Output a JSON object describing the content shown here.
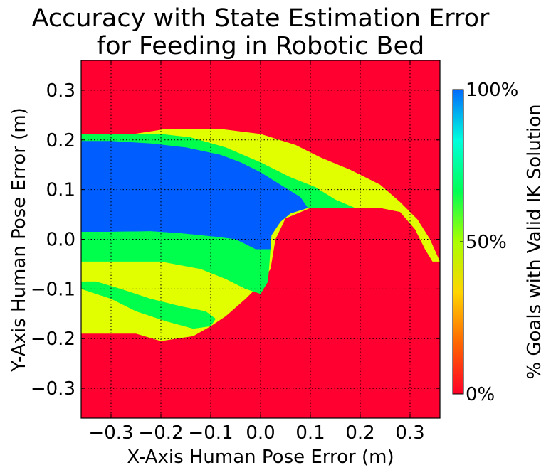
{
  "chart_data": {
    "type": "heatmap",
    "title_lines": [
      "Accuracy with State Estimation Error",
      "for Feeding in Robotic Bed"
    ],
    "xlabel": "X-Axis Human Pose Error (m)",
    "ylabel": "Y-Axis Human Pose Error (m)",
    "xlim": [
      -0.36,
      0.36
    ],
    "ylim": [
      -0.36,
      0.36
    ],
    "xticks": [
      -0.3,
      -0.2,
      -0.1,
      0.0,
      0.1,
      0.2,
      0.3
    ],
    "yticks": [
      -0.3,
      -0.2,
      -0.1,
      0.0,
      0.1,
      0.2,
      0.3
    ],
    "xtick_labels": [
      "−0.3",
      "−0.2",
      "−0.1",
      "0.0",
      "0.1",
      "0.2",
      "0.3"
    ],
    "ytick_labels": [
      "−0.3",
      "−0.2",
      "−0.1",
      "0.0",
      "0.1",
      "0.2",
      "0.3"
    ],
    "grid": true,
    "grid_style": "dotted",
    "colorbar": {
      "label": "% Goals with Valid IK Solution",
      "ticks": [
        0,
        50,
        100
      ],
      "tick_labels": [
        "0%",
        "50%",
        "100%"
      ],
      "colormap": "hsv",
      "stops": [
        "#ff0028",
        "#ff6600",
        "#ffd400",
        "#aaff00",
        "#00ff55",
        "#00ffdd",
        "#006aff"
      ]
    },
    "category_colors": {
      "0": "#ff0030",
      "33": "#e2ff00",
      "67": "#00ff4d",
      "100": "#005dff"
    },
    "regions": [
      {
        "value": 33,
        "description": "outer arc band and lower-left lobe",
        "polygon": [
          [
            -0.36,
            0.212
          ],
          [
            -0.33,
            0.212
          ],
          [
            -0.28,
            0.208
          ],
          [
            -0.19,
            0.222
          ],
          [
            -0.08,
            0.222
          ],
          [
            0.0,
            0.212
          ],
          [
            0.07,
            0.19
          ],
          [
            0.12,
            0.165
          ],
          [
            0.18,
            0.14
          ],
          [
            0.24,
            0.11
          ],
          [
            0.28,
            0.075
          ],
          [
            0.315,
            0.04
          ],
          [
            0.34,
            0.0
          ],
          [
            0.36,
            -0.045
          ],
          [
            0.345,
            -0.045
          ],
          [
            0.33,
            -0.02
          ],
          [
            0.31,
            0.02
          ],
          [
            0.28,
            0.055
          ],
          [
            0.24,
            0.063
          ],
          [
            0.1,
            0.063
          ],
          [
            0.05,
            0.042
          ],
          [
            0.03,
            0.0
          ],
          [
            0.02,
            -0.06
          ],
          [
            0.0,
            -0.09
          ],
          [
            -0.03,
            -0.12
          ],
          [
            -0.07,
            -0.155
          ],
          [
            -0.1,
            -0.175
          ],
          [
            -0.135,
            -0.195
          ],
          [
            -0.2,
            -0.205
          ],
          [
            -0.25,
            -0.19
          ],
          [
            -0.36,
            -0.19
          ]
        ]
      },
      {
        "value": 67,
        "description": "middle arc band",
        "polygon": [
          [
            -0.36,
            0.212
          ],
          [
            -0.2,
            0.212
          ],
          [
            -0.14,
            0.205
          ],
          [
            -0.07,
            0.185
          ],
          [
            0.0,
            0.155
          ],
          [
            0.06,
            0.125
          ],
          [
            0.11,
            0.105
          ],
          [
            0.15,
            0.08
          ],
          [
            0.19,
            0.063
          ],
          [
            0.05,
            0.063
          ],
          [
            0.03,
            0.045
          ],
          [
            0.02,
            0.005
          ],
          [
            0.015,
            -0.085
          ],
          [
            0.0,
            -0.11
          ],
          [
            -0.03,
            -0.1
          ],
          [
            -0.07,
            -0.08
          ],
          [
            -0.12,
            -0.06
          ],
          [
            -0.2,
            -0.045
          ],
          [
            -0.3,
            -0.045
          ],
          [
            -0.36,
            -0.045
          ]
        ]
      },
      {
        "value": 67,
        "description": "lower-left diagonal band",
        "polygon": [
          [
            -0.36,
            -0.085
          ],
          [
            -0.33,
            -0.085
          ],
          [
            -0.28,
            -0.1
          ],
          [
            -0.22,
            -0.12
          ],
          [
            -0.16,
            -0.135
          ],
          [
            -0.11,
            -0.145
          ],
          [
            -0.09,
            -0.16
          ],
          [
            -0.1,
            -0.175
          ],
          [
            -0.135,
            -0.18
          ],
          [
            -0.19,
            -0.165
          ],
          [
            -0.25,
            -0.145
          ],
          [
            -0.3,
            -0.12
          ],
          [
            -0.36,
            -0.1
          ]
        ]
      },
      {
        "value": 100,
        "description": "blue arc core",
        "polygon": [
          [
            -0.36,
            0.198
          ],
          [
            -0.3,
            0.198
          ],
          [
            -0.22,
            0.193
          ],
          [
            -0.15,
            0.185
          ],
          [
            -0.08,
            0.17
          ],
          [
            -0.04,
            0.155
          ],
          [
            0.0,
            0.135
          ],
          [
            0.04,
            0.11
          ],
          [
            0.08,
            0.085
          ],
          [
            0.095,
            0.063
          ],
          [
            0.06,
            0.052
          ],
          [
            0.04,
            0.035
          ],
          [
            0.022,
            0.008
          ],
          [
            0.02,
            -0.02
          ],
          [
            -0.01,
            -0.02
          ],
          [
            -0.05,
            -0.0
          ],
          [
            -0.09,
            0.005
          ],
          [
            -0.16,
            0.012
          ],
          [
            -0.22,
            0.016
          ],
          [
            -0.3,
            0.015
          ],
          [
            -0.36,
            0.015
          ]
        ]
      },
      {
        "value": 67,
        "description": "green band below blue core",
        "polygon": [
          [
            -0.36,
            0.015
          ],
          [
            -0.3,
            0.015
          ],
          [
            -0.22,
            0.016
          ],
          [
            -0.16,
            0.012
          ],
          [
            -0.09,
            0.005
          ],
          [
            -0.05,
            0.0
          ],
          [
            -0.01,
            -0.02
          ],
          [
            0.02,
            -0.02
          ],
          [
            0.015,
            -0.085
          ],
          [
            -0.0,
            -0.11
          ],
          [
            -0.02,
            -0.09
          ],
          [
            -0.07,
            -0.07
          ],
          [
            -0.12,
            -0.05
          ],
          [
            -0.18,
            -0.035
          ],
          [
            -0.25,
            -0.03
          ],
          [
            -0.3,
            -0.012
          ],
          [
            -0.36,
            -0.015
          ]
        ]
      }
    ]
  }
}
